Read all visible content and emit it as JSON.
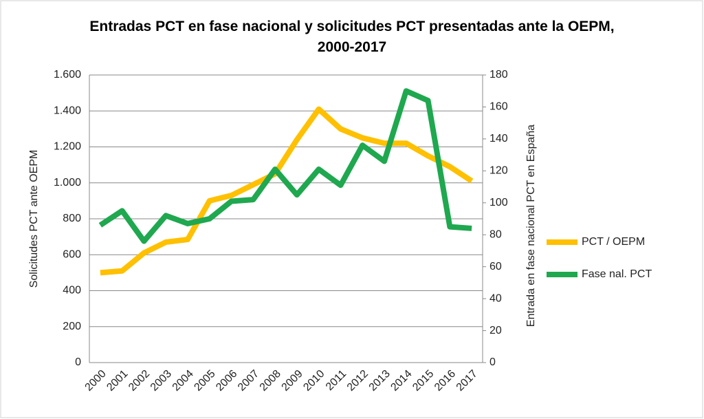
{
  "chart_data": {
    "type": "line",
    "title": "Entradas PCT en fase nacional y solicitudes PCT presentadas ante la OEPM, 2000-2017",
    "ylabel": "Solicitudes PCT ante OEPM",
    "y2label": "Entrada en fase nacional PCT en España",
    "categories": [
      "2000",
      "2001",
      "2002",
      "2003",
      "2004",
      "2005",
      "2006",
      "2007",
      "2008",
      "2009",
      "2010",
      "2011",
      "2012",
      "2013",
      "2014",
      "2015",
      "2016",
      "2017"
    ],
    "series": [
      {
        "name": "PCT / OEPM",
        "color": "#ffc000",
        "values": [
          500,
          510,
          610,
          670,
          685,
          900,
          930,
          990,
          1050,
          1240,
          1410,
          1300,
          1250,
          1220,
          1220,
          1150,
          1090,
          1010
        ]
      },
      {
        "name": "Fase nal. PCT",
        "color": "#1fa84f",
        "axis": "y2",
        "values": [
          86,
          95,
          76,
          92,
          87,
          90,
          101,
          102,
          121,
          105,
          121,
          111,
          136,
          126,
          170,
          164,
          85,
          84
        ]
      }
    ],
    "ylim": [
      0,
      1600
    ],
    "yticks": [
      0,
      200,
      400,
      600,
      800,
      {
        "value": 1000,
        "label": "1.000"
      },
      {
        "value": 1200,
        "label": "1.200"
      },
      {
        "value": 1400,
        "label": "1.400"
      },
      {
        "value": 1600,
        "label": "1.600"
      }
    ],
    "y2lim": [
      0,
      180
    ],
    "y2ticks": [
      0,
      20,
      40,
      60,
      80,
      100,
      120,
      140,
      160,
      180
    ],
    "grid": true,
    "legend": "right"
  }
}
